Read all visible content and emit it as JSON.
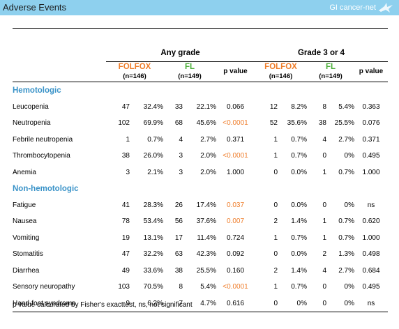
{
  "header": {
    "title": "Adverse Events",
    "logo_text": "GI cancer-net",
    "logo_icon": "crane-icon",
    "bg_color": "#8ed0ee"
  },
  "groups": {
    "any": "Any grade",
    "g34": "Grade 3 or 4"
  },
  "arms": {
    "folfox": {
      "name": "FOLFOX",
      "n": "(n=146)",
      "color": "#ef7d2a"
    },
    "fl": {
      "name": "FL",
      "n": "(n=149)",
      "color": "#4cae3a"
    },
    "pvalue": "p value"
  },
  "sections": [
    {
      "title": "Hemotologic",
      "rows": [
        {
          "label": "Leucopenia",
          "a_folfox_n": "47",
          "a_folfox_pct": "32.4%",
          "a_fl_n": "33",
          "a_fl_pct": "22.1%",
          "a_p": "0.066",
          "a_sig": false,
          "g_folfox_n": "12",
          "g_folfox_pct": "8.2%",
          "g_fl_n": "8",
          "g_fl_pct": "5.4%",
          "g_p": "0.363"
        },
        {
          "label": "Neutropenia",
          "a_folfox_n": "102",
          "a_folfox_pct": "69.9%",
          "a_fl_n": "68",
          "a_fl_pct": "45.6%",
          "a_p": "<0.0001",
          "a_sig": true,
          "g_folfox_n": "52",
          "g_folfox_pct": "35.6%",
          "g_fl_n": "38",
          "g_fl_pct": "25.5%",
          "g_p": "0.076"
        },
        {
          "label": "Febrile neutropenia",
          "a_folfox_n": "1",
          "a_folfox_pct": "0.7%",
          "a_fl_n": "4",
          "a_fl_pct": "2.7%",
          "a_p": "0.371",
          "a_sig": false,
          "g_folfox_n": "1",
          "g_folfox_pct": "0.7%",
          "g_fl_n": "4",
          "g_fl_pct": "2.7%",
          "g_p": "0.371"
        },
        {
          "label": "Thrombocytopenia",
          "a_folfox_n": "38",
          "a_folfox_pct": "26.0%",
          "a_fl_n": "3",
          "a_fl_pct": "2.0%",
          "a_p": "<0.0001",
          "a_sig": true,
          "g_folfox_n": "1",
          "g_folfox_pct": "0.7%",
          "g_fl_n": "0",
          "g_fl_pct": "0%",
          "g_p": "0.495"
        },
        {
          "label": "Anemia",
          "a_folfox_n": "3",
          "a_folfox_pct": "2.1%",
          "a_fl_n": "3",
          "a_fl_pct": "2.0%",
          "a_p": "1.000",
          "a_sig": false,
          "g_folfox_n": "0",
          "g_folfox_pct": "0.0%",
          "g_fl_n": "1",
          "g_fl_pct": "0.7%",
          "g_p": "1.000"
        }
      ]
    },
    {
      "title": "Non-hemotologic",
      "rows": [
        {
          "label": "Fatigue",
          "a_folfox_n": "41",
          "a_folfox_pct": "28.3%",
          "a_fl_n": "26",
          "a_fl_pct": "17.4%",
          "a_p": "0.037",
          "a_sig": true,
          "g_folfox_n": "0",
          "g_folfox_pct": "0.0%",
          "g_fl_n": "0",
          "g_fl_pct": "0%",
          "g_p": "ns"
        },
        {
          "label": "Nausea",
          "a_folfox_n": "78",
          "a_folfox_pct": "53.4%",
          "a_fl_n": "56",
          "a_fl_pct": "37.6%",
          "a_p": "0.007",
          "a_sig": true,
          "g_folfox_n": "2",
          "g_folfox_pct": "1.4%",
          "g_fl_n": "1",
          "g_fl_pct": "0.7%",
          "g_p": "0.620"
        },
        {
          "label": "Vomiting",
          "a_folfox_n": "19",
          "a_folfox_pct": "13.1%",
          "a_fl_n": "17",
          "a_fl_pct": "11.4%",
          "a_p": "0.724",
          "a_sig": false,
          "g_folfox_n": "1",
          "g_folfox_pct": "0.7%",
          "g_fl_n": "1",
          "g_fl_pct": "0.7%",
          "g_p": "1.000"
        },
        {
          "label": "Stomatitis",
          "a_folfox_n": "47",
          "a_folfox_pct": "32.2%",
          "a_fl_n": "63",
          "a_fl_pct": "42.3%",
          "a_p": "0.092",
          "a_sig": false,
          "g_folfox_n": "0",
          "g_folfox_pct": "0.0%",
          "g_fl_n": "2",
          "g_fl_pct": "1.3%",
          "g_p": "0.498"
        },
        {
          "label": "Diarrhea",
          "a_folfox_n": "49",
          "a_folfox_pct": "33.6%",
          "a_fl_n": "38",
          "a_fl_pct": "25.5%",
          "a_p": "0.160",
          "a_sig": false,
          "g_folfox_n": "2",
          "g_folfox_pct": "1.4%",
          "g_fl_n": "4",
          "g_fl_pct": "2.7%",
          "g_p": "0.684"
        },
        {
          "label": "Sensory neuropathy",
          "a_folfox_n": "103",
          "a_folfox_pct": "70.5%",
          "a_fl_n": "8",
          "a_fl_pct": "5.4%",
          "a_p": "<0.0001",
          "a_sig": true,
          "g_folfox_n": "1",
          "g_folfox_pct": "0.7%",
          "g_fl_n": "0",
          "g_fl_pct": "0%",
          "g_p": "0.495"
        },
        {
          "label": "Hand-foot syndrome",
          "a_folfox_n": "9",
          "a_folfox_pct": "6.2%",
          "a_fl_n": "7",
          "a_fl_pct": "4.7%",
          "a_p": "0.616",
          "a_sig": false,
          "g_folfox_n": "0",
          "g_folfox_pct": "0%",
          "g_fl_n": "0",
          "g_fl_pct": "0%",
          "g_p": "ns"
        }
      ]
    }
  ],
  "footnote": "p value calcurated by Fisher's exacttest, ns, not significant",
  "colors": {
    "significant": "#ef7d2a",
    "section": "#3a93c8"
  }
}
